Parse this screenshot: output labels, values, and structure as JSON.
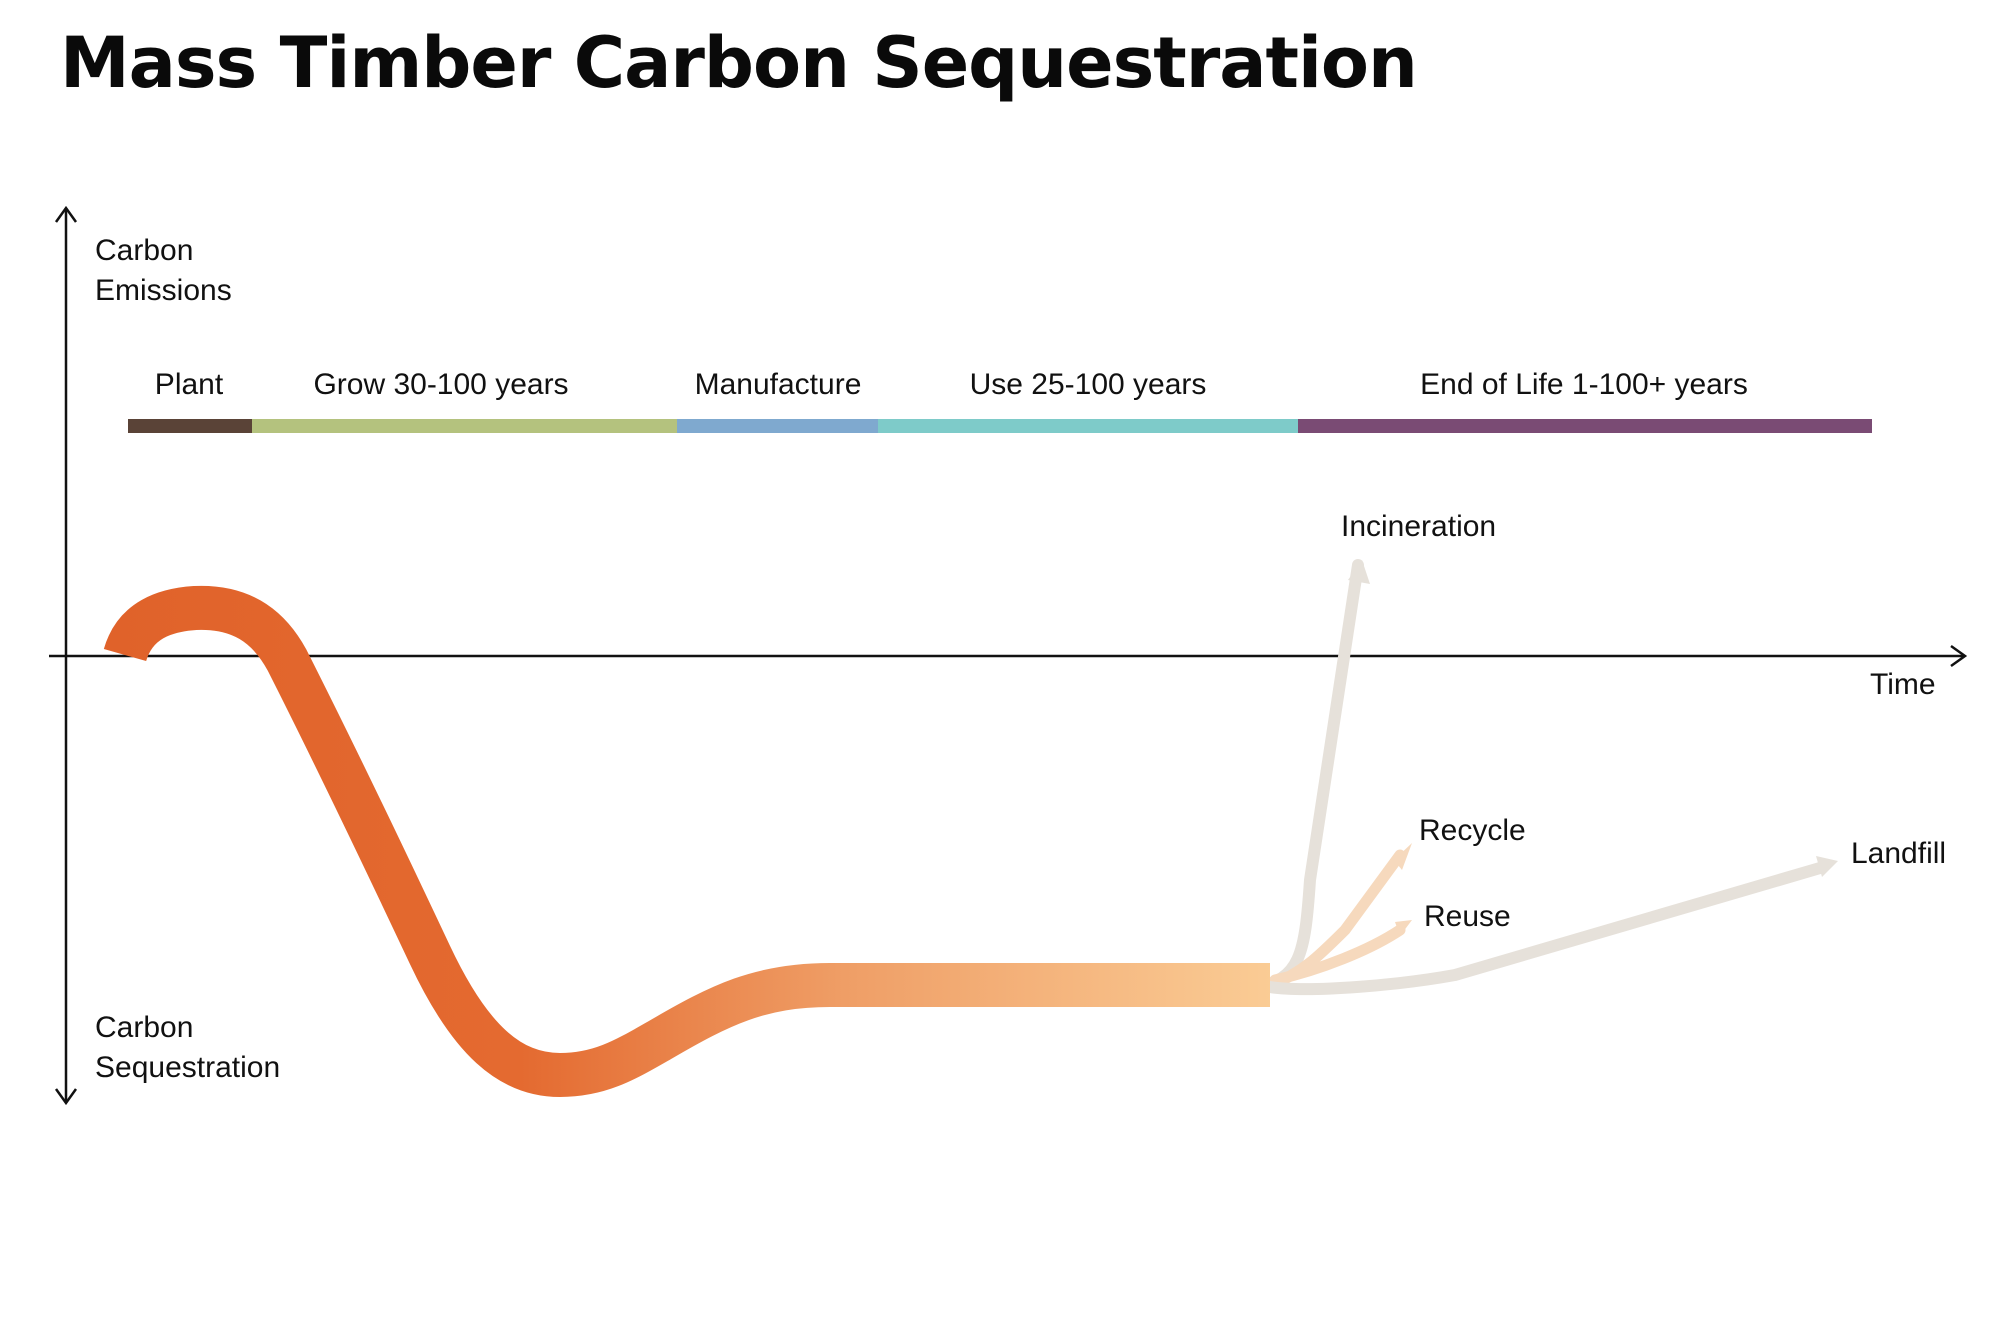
{
  "title": "Mass Timber Carbon Sequestration",
  "y_axis": {
    "top_label": [
      "Carbon",
      "Emissions"
    ],
    "bottom_label": [
      "Carbon",
      "Sequestration"
    ]
  },
  "x_axis": {
    "label": "Time"
  },
  "phases": [
    {
      "label": "Plant",
      "color": "#5a4337"
    },
    {
      "label": "Grow 30-100 years",
      "color": "#b4c27e"
    },
    {
      "label": "Manufacture",
      "color": "#7fa9cf"
    },
    {
      "label": "Use 25-100 years",
      "color": "#7ecbc9"
    },
    {
      "label": "End of Life 1-100+ years",
      "color": "#7a4b74"
    }
  ],
  "outcomes": [
    {
      "label": "Incineration",
      "color": "#e6e1da"
    },
    {
      "label": "Recycle",
      "color": "#f6d9bd"
    },
    {
      "label": "Reuse",
      "color": "#f6d9bd"
    },
    {
      "label": "Landfill",
      "color": "#e6e1da"
    }
  ],
  "curve_colors": {
    "start": "#e0622a",
    "mid": "#ef9e66",
    "end": "#fbcf98"
  }
}
